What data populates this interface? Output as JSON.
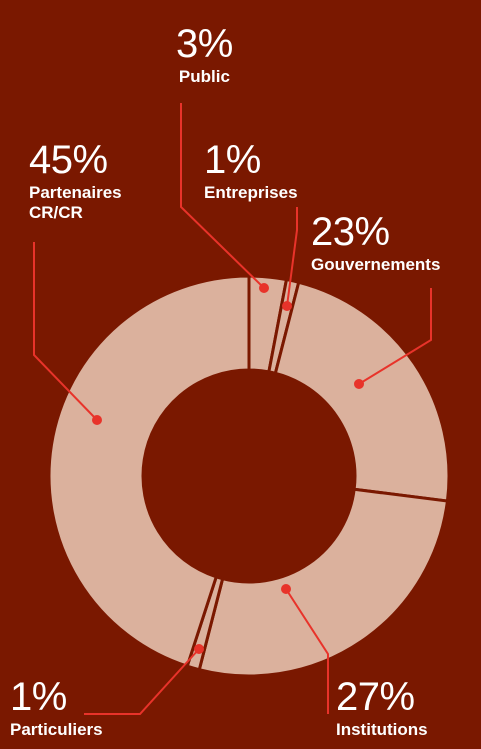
{
  "colors": {
    "background": "#7a1800",
    "slice": "#dbb19d",
    "accent": "#e8332a",
    "text": "#ffffff"
  },
  "chart_data": {
    "type": "pie",
    "donut": true,
    "slices": [
      {
        "label": "Public",
        "value": 3,
        "pct_text": "3%"
      },
      {
        "label": "Entreprises",
        "value": 1,
        "pct_text": "1%"
      },
      {
        "label": "Gouvernements",
        "value": 23,
        "pct_text": "23%"
      },
      {
        "label": "Institutions",
        "value": 27,
        "pct_text": "27%"
      },
      {
        "label": "Particuliers",
        "value": 1,
        "pct_text": "1%"
      },
      {
        "label": "Partenaires\nCR/CR",
        "value": 45,
        "pct_text": "45%"
      }
    ]
  }
}
